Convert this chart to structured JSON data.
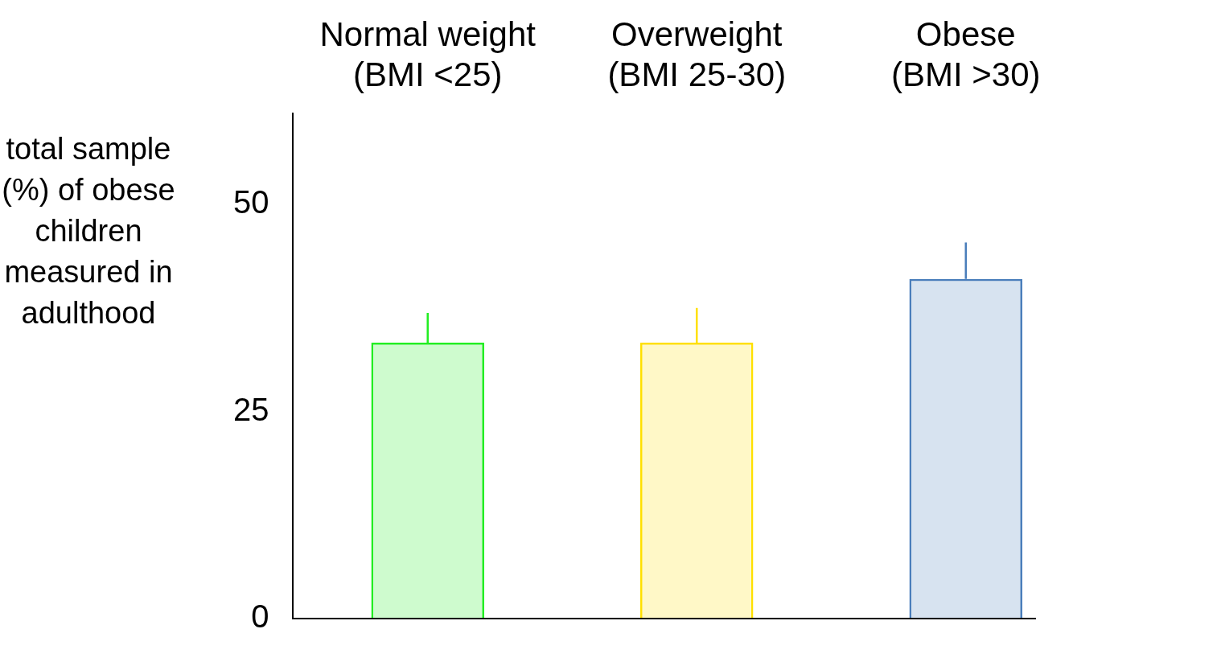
{
  "chart_data": {
    "type": "bar",
    "ylabel": "total sample (%) of obese children measured in adulthood",
    "categories": [
      "Normal weight\n(BMI <25)",
      "Overweight\n(BMI 25-30)",
      "Obese\n(BMI >30)"
    ],
    "values": [
      33.3,
      33.3,
      41
    ],
    "errors": [
      [
        33.3,
        36.9
      ],
      [
        33.3,
        37.5
      ],
      [
        41,
        45.4
      ]
    ],
    "colors": [
      "#22ee22",
      "#ffe000",
      "#4a7ebb"
    ],
    "ylim": [
      0,
      61
    ],
    "yticks": [
      0,
      25,
      50
    ],
    "grid": false,
    "legend": false
  }
}
